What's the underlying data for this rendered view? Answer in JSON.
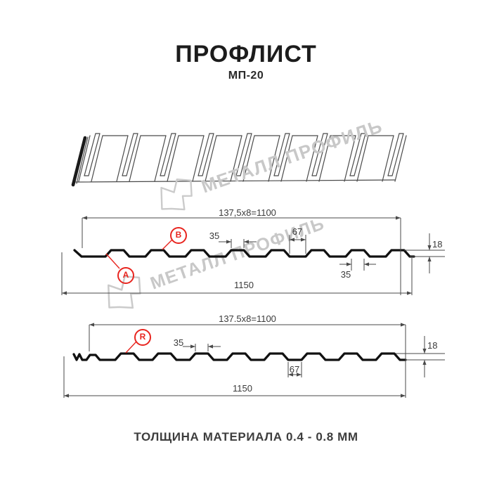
{
  "header": {
    "title": "ПРОФЛИСТ",
    "subtitle": "МП-20"
  },
  "watermark": {
    "text": "МЕТАЛЛ ПРОФИЛЬ"
  },
  "profile_top": {
    "dim_pitch_formula": "137,5x8=1100",
    "dim_crest_width": "35",
    "dim_flat_width": "67",
    "dim_height": "18",
    "dim_crest_width_bottom": "35",
    "dim_total_width": "1150",
    "label_a": "A",
    "label_b": "B"
  },
  "profile_bottom": {
    "dim_pitch_formula": "137.5x8=1100",
    "dim_crest_width": "35",
    "dim_height": "18",
    "dim_flat_width": "67",
    "dim_total_width": "1150",
    "label_r": "R"
  },
  "footer": {
    "thickness_note": "ТОЛЩИНА МАТЕРИАЛА 0.4 - 0.8 ММ"
  },
  "colors": {
    "accent_red": "#e8251f",
    "thin_line": "#4a4a4a",
    "profile_line": "#111111",
    "sketch_line": "#4a4a4a",
    "watermark": "#c8c8c8",
    "text_dark": "#1c1c1c"
  }
}
